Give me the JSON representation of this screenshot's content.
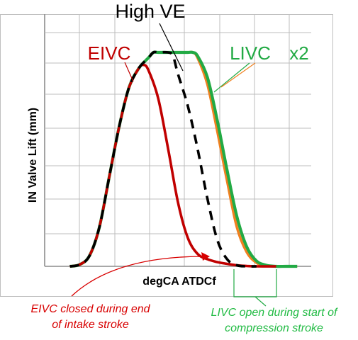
{
  "chart_data": {
    "type": "line",
    "title": "",
    "xlabel": "degCA ATDCf",
    "ylabel": "IN Valve Lift (mm)",
    "xlim": [
      0,
      380
    ],
    "ylim": [
      0,
      6
    ],
    "grid": true,
    "legend": "none",
    "series": [
      {
        "name": "EIVC",
        "color": "#c00000",
        "style": "solid",
        "x": [
          36,
          50,
          64,
          78,
          92,
          106,
          120,
          134,
          141,
          148,
          162,
          176,
          190,
          204,
          218,
          232,
          246,
          260,
          274,
          288,
          302,
          330
        ],
        "y": [
          0,
          0.05,
          0.3,
          1.1,
          2.5,
          3.9,
          5.0,
          5.55,
          5.65,
          5.5,
          4.7,
          3.3,
          1.8,
          0.8,
          0.35,
          0.2,
          0.12,
          0.07,
          0.03,
          0.01,
          0,
          0
        ]
      },
      {
        "name": "High VE",
        "color": "#000000",
        "style": "dashed",
        "x": [
          36,
          50,
          64,
          78,
          92,
          106,
          120,
          134,
          148,
          155,
          162,
          176,
          183,
          190,
          204,
          218,
          232,
          246,
          260,
          274,
          288,
          302
        ],
        "y": [
          0,
          0.05,
          0.3,
          1.1,
          2.5,
          3.9,
          5.0,
          5.55,
          5.85,
          6.0,
          6.0,
          6.0,
          5.9,
          5.4,
          4.5,
          3.3,
          1.9,
          0.75,
          0.2,
          0.03,
          0,
          0
        ]
      },
      {
        "name": "LIVC",
        "color": "#f08020",
        "style": "solid",
        "x": [
          36,
          50,
          64,
          78,
          92,
          106,
          120,
          134,
          148,
          155,
          162,
          176,
          190,
          204,
          211,
          218,
          232,
          246,
          260,
          274,
          288,
          302,
          316,
          330,
          344,
          360
        ],
        "y": [
          0,
          0.05,
          0.3,
          1.1,
          2.5,
          3.9,
          5.0,
          5.55,
          5.85,
          6.0,
          6.0,
          6.0,
          6.0,
          6.0,
          6.0,
          5.85,
          5.1,
          3.8,
          2.4,
          1.1,
          0.4,
          0.1,
          0.02,
          0,
          0,
          0
        ]
      },
      {
        "name": "x2",
        "color": "#22aa44",
        "style": "solid",
        "x": [
          36,
          50,
          64,
          78,
          92,
          106,
          120,
          134,
          148,
          155,
          162,
          176,
          190,
          204,
          211,
          218,
          232,
          246,
          260,
          274,
          288,
          302,
          316,
          330,
          344,
          360
        ],
        "y": [
          0,
          0.05,
          0.3,
          1.1,
          2.5,
          3.9,
          5.0,
          5.55,
          5.85,
          6.0,
          6.0,
          6.0,
          6.0,
          6.0,
          6.0,
          5.9,
          5.3,
          4.1,
          2.7,
          1.4,
          0.55,
          0.15,
          0.03,
          0,
          0,
          0
        ]
      }
    ],
    "annotations": {
      "eivc_label": "EIVC",
      "high_ve_label": "High VE",
      "livc_label": "LIVC",
      "x2_label": "x2",
      "eivc_note_line1": "EIVC closed during end",
      "eivc_note_line2": "of intake stroke",
      "livc_note_line1": "LIVC open during start of",
      "livc_note_line2": "compression stroke"
    },
    "colors": {
      "eivc": "#c00000",
      "high_ve": "#000000",
      "livc": "#f08020",
      "x2": "#22aa44",
      "eivc_text": "#c00000",
      "livc_text": "#22aa44",
      "eivc_note": "#d80000",
      "livc_note": "#22bb44"
    }
  }
}
